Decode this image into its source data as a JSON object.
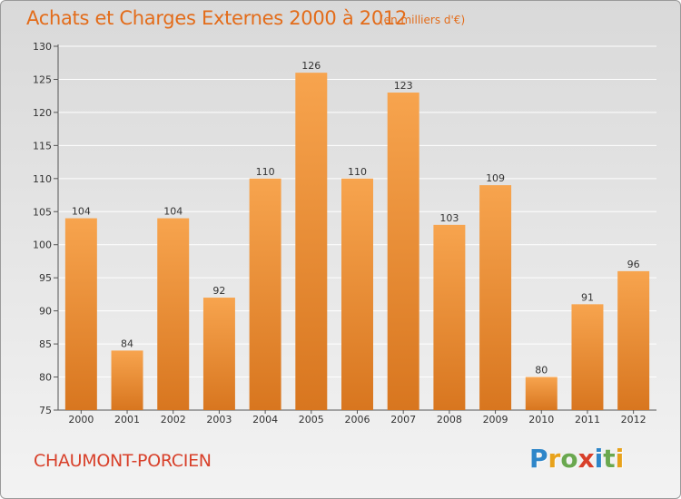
{
  "chart_data": {
    "type": "bar",
    "title": "Achats et Charges Externes 2000 à 2012",
    "subtitle": "(en milliers d'€)",
    "categories": [
      "2000",
      "2001",
      "2002",
      "2003",
      "2004",
      "2005",
      "2006",
      "2007",
      "2008",
      "2009",
      "2010",
      "2011",
      "2012"
    ],
    "values": [
      104,
      84,
      104,
      92,
      110,
      126,
      110,
      123,
      103,
      109,
      80,
      91,
      96
    ],
    "ylim": [
      75,
      130
    ],
    "yticks": [
      75,
      80,
      85,
      90,
      95,
      100,
      105,
      110,
      115,
      120,
      125,
      130
    ],
    "xlabel": "",
    "ylabel": "",
    "grid": true,
    "colors": {
      "bar_light": "#f7a44e",
      "bar_dark": "#d8761f",
      "title": "#e36c1a",
      "location": "#d8402a"
    }
  },
  "footer": {
    "location": "CHAUMONT-PORCIEN",
    "logo": "Proxiti"
  }
}
